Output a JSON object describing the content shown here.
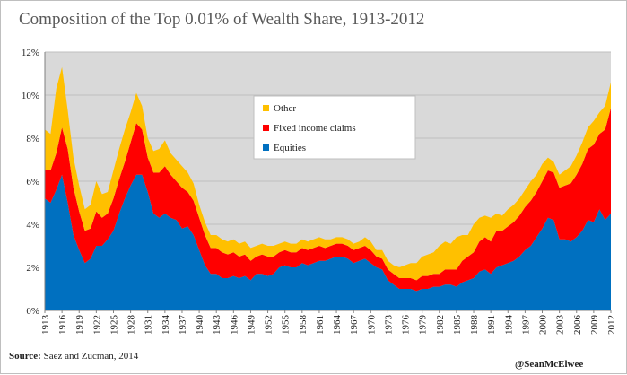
{
  "title": "Composition of the Top 0.01% of Wealth Share, 1913-2012",
  "source_label": "Source:",
  "source_text": "Saez and Zucman, 2014",
  "credit": "@SeanMcElwee",
  "colors": {
    "equities": "#0070c0",
    "fixed_income": "#ff0000",
    "other": "#ffc000",
    "plot_bg": "#d9d9d9",
    "grid": "#bfbfbf"
  },
  "chart_data": {
    "type": "area",
    "stacked": true,
    "title": "Composition of the Top 0.01% of Wealth Share, 1913-2012",
    "xlabel": "",
    "ylabel": "",
    "ylim": [
      0,
      12
    ],
    "yticks": [
      "0%",
      "2%",
      "4%",
      "6%",
      "8%",
      "10%",
      "12%"
    ],
    "xtick_labels": [
      "1913",
      "1916",
      "1919",
      "1922",
      "1925",
      "1928",
      "1931",
      "1934",
      "1937",
      "1940",
      "1943",
      "1946",
      "1949",
      "1952",
      "1955",
      "1958",
      "1961",
      "1964",
      "1967",
      "1970",
      "1973",
      "1976",
      "1979",
      "1982",
      "1985",
      "1988",
      "1991",
      "1994",
      "1997",
      "2000",
      "2003",
      "2006",
      "2009",
      "2012"
    ],
    "grid": true,
    "legend_position": "top-center",
    "legend": [
      "Other",
      "Fixed income claims",
      "Equities"
    ],
    "x": [
      1913,
      1914,
      1915,
      1916,
      1917,
      1918,
      1919,
      1920,
      1921,
      1922,
      1923,
      1924,
      1925,
      1926,
      1927,
      1928,
      1929,
      1930,
      1931,
      1932,
      1933,
      1934,
      1935,
      1936,
      1937,
      1938,
      1939,
      1940,
      1941,
      1942,
      1943,
      1944,
      1945,
      1946,
      1947,
      1948,
      1949,
      1950,
      1951,
      1952,
      1953,
      1954,
      1955,
      1956,
      1957,
      1958,
      1959,
      1960,
      1961,
      1962,
      1963,
      1964,
      1965,
      1966,
      1967,
      1968,
      1969,
      1970,
      1971,
      1972,
      1973,
      1974,
      1975,
      1976,
      1977,
      1978,
      1979,
      1980,
      1981,
      1982,
      1983,
      1984,
      1985,
      1986,
      1987,
      1988,
      1989,
      1990,
      1991,
      1992,
      1993,
      1994,
      1995,
      1996,
      1997,
      1998,
      1999,
      2000,
      2001,
      2002,
      2003,
      2004,
      2005,
      2006,
      2007,
      2008,
      2009,
      2010,
      2011,
      2012
    ],
    "series": [
      {
        "name": "Equities",
        "values": [
          5.2,
          5.0,
          5.6,
          6.3,
          5.0,
          3.5,
          2.8,
          2.2,
          2.4,
          3.0,
          3.0,
          3.3,
          3.7,
          4.5,
          5.2,
          5.8,
          6.3,
          6.3,
          5.5,
          4.5,
          4.3,
          4.5,
          4.3,
          4.2,
          3.8,
          3.9,
          3.5,
          2.8,
          2.1,
          1.7,
          1.7,
          1.5,
          1.5,
          1.6,
          1.5,
          1.6,
          1.4,
          1.7,
          1.7,
          1.6,
          1.7,
          2.0,
          2.1,
          2.0,
          2.0,
          2.2,
          2.1,
          2.2,
          2.3,
          2.3,
          2.4,
          2.5,
          2.5,
          2.4,
          2.2,
          2.3,
          2.4,
          2.2,
          2.0,
          1.9,
          1.4,
          1.2,
          1.0,
          1.0,
          1.0,
          0.9,
          1.0,
          1.0,
          1.1,
          1.1,
          1.2,
          1.2,
          1.1,
          1.3,
          1.4,
          1.5,
          1.8,
          1.9,
          1.7,
          2.0,
          2.1,
          2.2,
          2.3,
          2.5,
          2.8,
          3.0,
          3.4,
          3.8,
          4.3,
          4.2,
          3.3,
          3.3,
          3.2,
          3.4,
          3.7,
          4.2,
          4.1,
          4.7,
          4.2,
          4.5
        ]
      },
      {
        "name": "Fixed income claims",
        "values": [
          1.3,
          1.5,
          1.7,
          2.2,
          2.5,
          2.2,
          1.8,
          1.5,
          1.4,
          1.6,
          1.3,
          1.2,
          1.5,
          1.6,
          1.7,
          2.0,
          2.4,
          2.1,
          1.6,
          1.9,
          2.1,
          2.2,
          2.0,
          1.8,
          1.9,
          1.6,
          1.6,
          1.5,
          1.4,
          1.2,
          1.2,
          1.2,
          1.1,
          1.1,
          1.0,
          1.0,
          0.9,
          0.8,
          0.9,
          0.9,
          0.8,
          0.7,
          0.7,
          0.7,
          0.7,
          0.7,
          0.7,
          0.7,
          0.7,
          0.6,
          0.6,
          0.6,
          0.6,
          0.6,
          0.6,
          0.6,
          0.6,
          0.6,
          0.5,
          0.5,
          0.5,
          0.5,
          0.5,
          0.5,
          0.5,
          0.5,
          0.6,
          0.6,
          0.6,
          0.6,
          0.7,
          0.7,
          0.8,
          1.0,
          1.1,
          1.2,
          1.4,
          1.5,
          1.5,
          1.7,
          1.6,
          1.7,
          1.8,
          1.9,
          2.0,
          2.1,
          2.1,
          2.2,
          2.2,
          2.2,
          2.4,
          2.5,
          2.7,
          2.9,
          3.1,
          3.3,
          3.6,
          3.5,
          4.2,
          4.9
        ]
      },
      {
        "name": "Other",
        "values": [
          1.9,
          1.7,
          3.0,
          2.8,
          1.8,
          1.4,
          1.2,
          1.0,
          1.1,
          1.4,
          1.1,
          1.0,
          1.3,
          1.4,
          1.5,
          1.4,
          1.4,
          1.1,
          0.9,
          1.0,
          1.1,
          1.2,
          1.0,
          1.0,
          1.0,
          0.9,
          0.8,
          0.6,
          0.6,
          0.6,
          0.6,
          0.6,
          0.6,
          0.6,
          0.6,
          0.6,
          0.6,
          0.5,
          0.5,
          0.5,
          0.5,
          0.4,
          0.4,
          0.4,
          0.4,
          0.4,
          0.4,
          0.4,
          0.4,
          0.4,
          0.3,
          0.3,
          0.3,
          0.3,
          0.3,
          0.3,
          0.4,
          0.4,
          0.3,
          0.4,
          0.4,
          0.4,
          0.5,
          0.6,
          0.7,
          0.8,
          0.9,
          1.0,
          1.0,
          1.3,
          1.3,
          1.2,
          1.5,
          1.2,
          1.0,
          1.3,
          1.1,
          1.0,
          1.1,
          0.8,
          0.7,
          0.8,
          0.8,
          0.8,
          0.8,
          0.9,
          0.8,
          0.8,
          0.6,
          0.5,
          0.6,
          0.7,
          0.8,
          0.9,
          1.0,
          1.0,
          1.1,
          1.0,
          1.1,
          1.2
        ]
      }
    ]
  }
}
